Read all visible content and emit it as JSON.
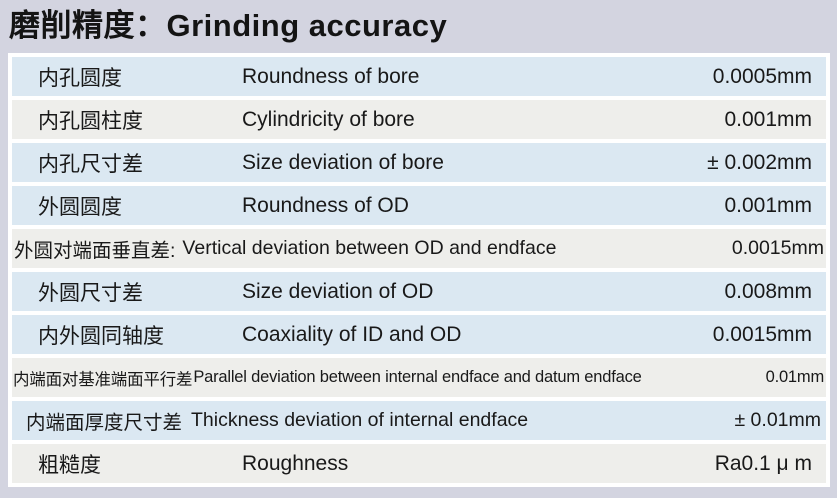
{
  "title": "磨削精度：Grinding accuracy",
  "table": {
    "rows": [
      {
        "zh": "内孔圆度",
        "en": "Roundness of bore",
        "value": "0.0005mm",
        "bg": "blue"
      },
      {
        "zh": "内孔圆柱度",
        "en": "Cylindricity of bore",
        "value": "0.001mm",
        "bg": "gray"
      },
      {
        "zh": "内孔尺寸差",
        "en": "Size deviation of bore",
        "value": "± 0.002mm",
        "bg": "blue"
      },
      {
        "zh": "外圆圆度",
        "en": "Roundness of OD",
        "value": "0.001mm",
        "bg": "blue"
      },
      {
        "zh": "外圆对端面垂直差:",
        "en": "Vertical deviation between OD and endface",
        "value": "0.0015mm",
        "bg": "gray"
      },
      {
        "zh": "外圆尺寸差",
        "en": "Size deviation of OD",
        "value": "0.008mm",
        "bg": "blue"
      },
      {
        "zh": "内外圆同轴度",
        "en": "Coaxiality of ID and OD",
        "value": "0.0015mm",
        "bg": "blue"
      },
      {
        "zh": "内端面对基准端面平行差",
        "en": "Parallel deviation between internal endface and datum endface",
        "value": "0.01mm",
        "bg": "gray"
      },
      {
        "zh": "内端面厚度尺寸差",
        "en": "Thickness deviation of internal endface",
        "value": "± 0.01mm",
        "bg": "blue"
      },
      {
        "zh": "粗糙度",
        "en": "Roughness",
        "value": "Ra0.1 μ m",
        "bg": "gray"
      }
    ],
    "colors": {
      "page_background": "#d3d4e0",
      "row_blue": "#dbe8f2",
      "row_gray": "#eeeeeb",
      "row_border": "#ffffff",
      "text": "#191919"
    }
  }
}
